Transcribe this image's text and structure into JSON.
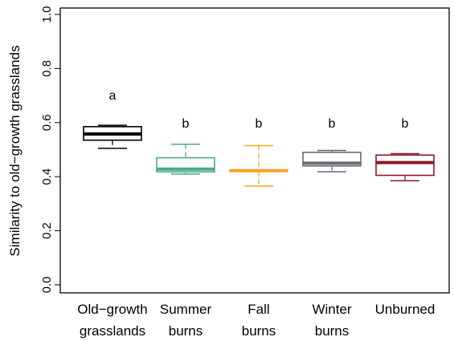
{
  "chart_data": {
    "type": "box",
    "ylabel": "Similarity to old−growth grasslands",
    "xlabel": "",
    "ylim": [
      0.0,
      1.0
    ],
    "yticks": [
      "0.0",
      "0.2",
      "0.4",
      "0.6",
      "0.8",
      "1.0"
    ],
    "grid": false,
    "categories": [
      {
        "line1": "Old−growth",
        "line2": "grasslands",
        "letter": "a",
        "color": "#000000",
        "min": 0.505,
        "q1": 0.535,
        "median": 0.558,
        "q3": 0.585,
        "max": 0.59
      },
      {
        "line1": "Summer",
        "line2": "burns",
        "letter": "b",
        "color": "#4aa88e",
        "min": 0.41,
        "q1": 0.418,
        "median": 0.428,
        "q3": 0.47,
        "max": 0.52
      },
      {
        "line1": "Fall",
        "line2": "burns",
        "letter": "b",
        "color": "#f5a623",
        "min": 0.365,
        "q1": 0.42,
        "median": 0.422,
        "q3": 0.425,
        "max": 0.515
      },
      {
        "line1": "Winter",
        "line2": "burns",
        "letter": "b",
        "color": "#6b6870",
        "min": 0.418,
        "q1": 0.44,
        "median": 0.45,
        "q3": 0.49,
        "max": 0.497
      },
      {
        "line1": "Unburned",
        "line2": "",
        "letter": "b",
        "color": "#8b1a2b",
        "min": 0.385,
        "q1": 0.405,
        "median": 0.452,
        "q3": 0.48,
        "max": 0.485
      }
    ]
  }
}
